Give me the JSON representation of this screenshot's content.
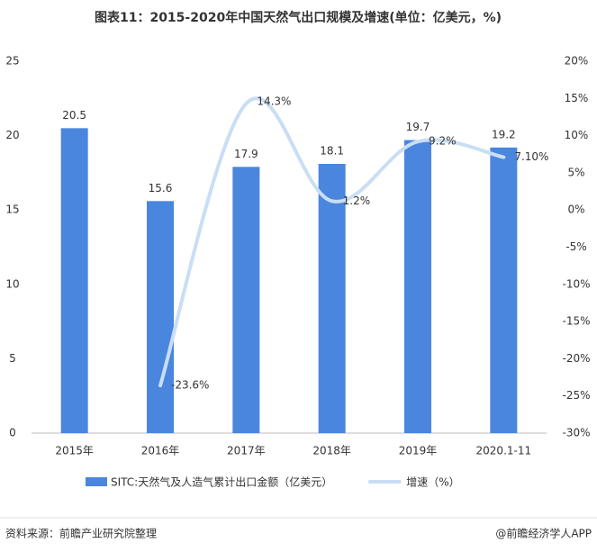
{
  "chart_data": {
    "type": "bar-line",
    "title": "图表11：2015-2020年中国天然气出口规模及增速(单位：亿美元，%)",
    "categories": [
      "2015年",
      "2016年",
      "2017年",
      "2018年",
      "2019年",
      "2020.1-11"
    ],
    "series": [
      {
        "name": "SITC:天然气及人造气累计出口金额（亿美元）",
        "type": "bar",
        "color": "#4a86de",
        "values": [
          20.5,
          15.6,
          17.9,
          18.1,
          19.7,
          19.2
        ]
      },
      {
        "name": "增速（%）",
        "type": "line",
        "axis": "y2",
        "color": "#c9def5",
        "values": [
          null,
          -23.6,
          14.3,
          1.2,
          9.2,
          7.1
        ],
        "value_labels": [
          null,
          "-23.6%",
          "14.3%",
          "1.2%",
          "9.2%",
          "7.10%"
        ]
      }
    ],
    "ylim": [
      0,
      25
    ],
    "yticks": [
      0,
      5,
      10,
      15,
      20,
      25
    ],
    "y2lim": [
      -30,
      20
    ],
    "y2ticks": [
      {
        "value": -30,
        "label": "-30%"
      },
      {
        "value": -25,
        "label": "-25%"
      },
      {
        "value": -20,
        "label": "-20%"
      },
      {
        "value": -15,
        "label": "-15%"
      },
      {
        "value": -10,
        "label": "-10%"
      },
      {
        "value": -5,
        "label": "-5%"
      },
      {
        "value": 0,
        "label": "0%"
      },
      {
        "value": 5,
        "label": "5%"
      },
      {
        "value": 10,
        "label": "10%"
      },
      {
        "value": 15,
        "label": "15%"
      },
      {
        "value": 20,
        "label": "20%"
      }
    ],
    "grid": false,
    "source": "资料来源：前瞻产业研究院整理",
    "credit": "@前瞻经济学人APP"
  }
}
